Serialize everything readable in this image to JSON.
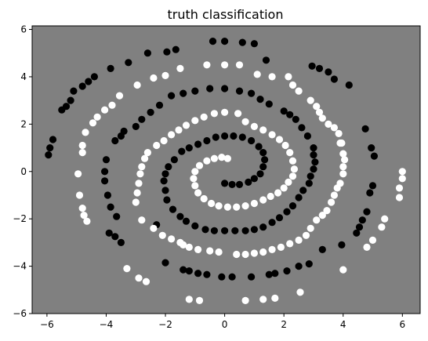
{
  "chart_data": {
    "type": "scatter",
    "title": "truth classification",
    "xlabel": "",
    "ylabel": "",
    "xlim": [
      -6.5,
      6.6
    ],
    "ylim": [
      -6.0,
      6.15
    ],
    "x_ticks": [
      -6,
      -4,
      -2,
      0,
      2,
      4,
      6
    ],
    "y_ticks": [
      -6,
      -4,
      -2,
      0,
      2,
      4,
      6
    ],
    "x_tick_labels": [
      "−6",
      "−4",
      "−2",
      "0",
      "2",
      "4",
      "6"
    ],
    "y_tick_labels": [
      "−6",
      "−4",
      "−2",
      "0",
      "2",
      "4",
      "6"
    ],
    "grid": false,
    "legend": "none",
    "colors": {
      "background": "#808080",
      "class_black": "#000000",
      "class_white": "#ffffff"
    },
    "series": [
      {
        "color": "#000000",
        "points": [
          [
            0.0,
            -0.5
          ],
          [
            0.25,
            -0.55
          ],
          [
            0.5,
            -0.55
          ],
          [
            0.8,
            -0.45
          ],
          [
            1.0,
            -0.3
          ],
          [
            1.2,
            -0.1
          ],
          [
            1.3,
            0.2
          ],
          [
            1.35,
            0.5
          ],
          [
            1.3,
            0.8
          ],
          [
            1.15,
            1.05
          ],
          [
            0.9,
            1.3
          ],
          [
            0.6,
            1.45
          ],
          [
            0.3,
            1.5
          ],
          [
            0.0,
            1.5
          ],
          [
            -0.3,
            1.45
          ],
          [
            -0.6,
            1.3
          ],
          [
            -0.9,
            1.15
          ],
          [
            -1.2,
            1.0
          ],
          [
            -1.45,
            0.85
          ],
          [
            -1.7,
            0.5
          ],
          [
            -1.9,
            0.2
          ],
          [
            -2.0,
            -0.1
          ],
          [
            -2.05,
            -0.4
          ],
          [
            -2.0,
            -0.8
          ],
          [
            -1.95,
            -1.2
          ],
          [
            -1.75,
            -1.6
          ],
          [
            -1.5,
            -1.9
          ],
          [
            -1.3,
            -2.1
          ],
          [
            -1.0,
            -2.3
          ],
          [
            -0.65,
            -2.45
          ],
          [
            -0.35,
            -2.5
          ],
          [
            0.0,
            -2.5
          ],
          [
            0.35,
            -2.5
          ],
          [
            0.7,
            -2.5
          ],
          [
            1.0,
            -2.45
          ],
          [
            1.3,
            -2.35
          ],
          [
            1.6,
            -2.15
          ],
          [
            1.85,
            -1.95
          ],
          [
            2.1,
            -1.7
          ],
          [
            2.3,
            -1.45
          ],
          [
            2.5,
            -1.1
          ],
          [
            2.65,
            -0.8
          ],
          [
            2.85,
            -0.5
          ],
          [
            2.9,
            -0.2
          ],
          [
            3.0,
            0.1
          ],
          [
            3.05,
            0.4
          ],
          [
            3.0,
            0.7
          ],
          [
            3.0,
            1.0
          ],
          [
            2.8,
            1.5
          ],
          [
            2.6,
            1.85
          ],
          [
            2.4,
            2.2
          ],
          [
            2.2,
            2.4
          ],
          [
            2.0,
            2.55
          ],
          [
            1.5,
            2.85
          ],
          [
            1.2,
            3.05
          ],
          [
            0.9,
            3.3
          ],
          [
            0.5,
            3.4
          ],
          [
            0.0,
            3.5
          ],
          [
            -0.5,
            3.5
          ],
          [
            -1.0,
            3.4
          ],
          [
            -1.4,
            3.3
          ],
          [
            -1.8,
            3.2
          ],
          [
            -2.2,
            2.8
          ],
          [
            -2.5,
            2.5
          ],
          [
            -2.8,
            2.2
          ],
          [
            -3.0,
            1.9
          ],
          [
            -3.4,
            1.7
          ],
          [
            -3.5,
            1.5
          ],
          [
            -3.7,
            1.3
          ],
          [
            -4.0,
            0.5
          ],
          [
            -4.05,
            0.0
          ],
          [
            -4.05,
            -0.4
          ],
          [
            -3.95,
            -1.0
          ],
          [
            -3.85,
            -1.5
          ],
          [
            -3.65,
            -1.9
          ],
          [
            -3.9,
            -2.6
          ],
          [
            -3.7,
            -2.75
          ],
          [
            -3.5,
            -3.0
          ],
          [
            -2.3,
            -2.25
          ],
          [
            -2.0,
            -3.85
          ],
          [
            -1.4,
            -4.15
          ],
          [
            -1.2,
            -4.2
          ],
          [
            -0.9,
            -4.3
          ],
          [
            -0.6,
            -4.35
          ],
          [
            -0.1,
            -4.45
          ],
          [
            0.25,
            -4.45
          ],
          [
            0.9,
            -4.45
          ],
          [
            1.5,
            -4.35
          ],
          [
            1.7,
            -4.3
          ],
          [
            2.1,
            -4.2
          ],
          [
            2.5,
            -4.0
          ],
          [
            2.85,
            -3.9
          ],
          [
            3.3,
            -3.3
          ],
          [
            3.95,
            -3.1
          ],
          [
            4.45,
            -2.6
          ],
          [
            4.55,
            -2.35
          ],
          [
            4.65,
            -2.05
          ],
          [
            4.8,
            -1.7
          ],
          [
            4.9,
            -0.9
          ],
          [
            5.0,
            -0.6
          ],
          [
            5.05,
            0.65
          ],
          [
            4.95,
            1.0
          ],
          [
            4.75,
            1.8
          ],
          [
            4.2,
            3.65
          ],
          [
            3.7,
            3.9
          ],
          [
            3.5,
            4.2
          ],
          [
            3.2,
            4.35
          ],
          [
            2.95,
            4.45
          ],
          [
            1.4,
            4.7
          ],
          [
            1.0,
            5.4
          ],
          [
            0.6,
            5.45
          ],
          [
            0.0,
            5.5
          ],
          [
            -0.4,
            5.5
          ],
          [
            -1.65,
            5.15
          ],
          [
            -1.95,
            5.05
          ],
          [
            -2.6,
            5.0
          ],
          [
            -3.25,
            4.6
          ],
          [
            -3.85,
            4.35
          ],
          [
            -4.4,
            4.0
          ],
          [
            -4.6,
            3.8
          ],
          [
            -4.8,
            3.6
          ],
          [
            -5.1,
            3.4
          ],
          [
            -5.2,
            3.0
          ],
          [
            -5.35,
            2.75
          ],
          [
            -5.5,
            2.6
          ],
          [
            -5.8,
            1.35
          ],
          [
            -5.9,
            1.0
          ],
          [
            -5.95,
            0.7
          ]
        ]
      },
      {
        "color": "#ffffff",
        "points": [
          [
            0.1,
            0.55
          ],
          [
            -0.1,
            0.6
          ],
          [
            -0.35,
            0.55
          ],
          [
            -0.6,
            0.45
          ],
          [
            -0.85,
            0.25
          ],
          [
            -1.0,
            0.0
          ],
          [
            -1.05,
            -0.3
          ],
          [
            -1.0,
            -0.6
          ],
          [
            -0.9,
            -0.9
          ],
          [
            -0.7,
            -1.15
          ],
          [
            -0.45,
            -1.35
          ],
          [
            -0.2,
            -1.45
          ],
          [
            0.1,
            -1.5
          ],
          [
            0.4,
            -1.5
          ],
          [
            0.7,
            -1.45
          ],
          [
            1.0,
            -1.35
          ],
          [
            1.3,
            -1.2
          ],
          [
            1.55,
            -1.05
          ],
          [
            1.8,
            -0.9
          ],
          [
            2.0,
            -0.7
          ],
          [
            2.15,
            -0.45
          ],
          [
            2.3,
            -0.2
          ],
          [
            2.35,
            0.1
          ],
          [
            2.3,
            0.45
          ],
          [
            2.2,
            0.8
          ],
          [
            2.05,
            1.1
          ],
          [
            1.85,
            1.35
          ],
          [
            1.6,
            1.55
          ],
          [
            1.3,
            1.75
          ],
          [
            1.0,
            1.9
          ],
          [
            0.7,
            2.1
          ],
          [
            0.45,
            2.45
          ],
          [
            0.0,
            2.5
          ],
          [
            -0.35,
            2.45
          ],
          [
            -0.7,
            2.3
          ],
          [
            -1.0,
            2.15
          ],
          [
            -1.3,
            1.95
          ],
          [
            -1.55,
            1.75
          ],
          [
            -1.8,
            1.55
          ],
          [
            -2.05,
            1.3
          ],
          [
            -2.3,
            1.1
          ],
          [
            -2.6,
            0.8
          ],
          [
            -2.7,
            0.55
          ],
          [
            -2.8,
            0.2
          ],
          [
            -2.85,
            -0.1
          ],
          [
            -2.9,
            -0.5
          ],
          [
            -2.95,
            -0.9
          ],
          [
            -3.0,
            -1.3
          ],
          [
            -2.8,
            -2.05
          ],
          [
            -2.4,
            -2.4
          ],
          [
            -2.1,
            -2.7
          ],
          [
            -1.8,
            -2.85
          ],
          [
            -1.5,
            -3.0
          ],
          [
            -1.4,
            -3.1
          ],
          [
            -1.2,
            -3.2
          ],
          [
            -0.9,
            -3.3
          ],
          [
            -0.5,
            -3.35
          ],
          [
            -0.2,
            -3.4
          ],
          [
            0.4,
            -3.5
          ],
          [
            0.7,
            -3.5
          ],
          [
            1.0,
            -3.45
          ],
          [
            1.3,
            -3.4
          ],
          [
            1.6,
            -3.3
          ],
          [
            1.9,
            -3.2
          ],
          [
            2.2,
            -3.05
          ],
          [
            2.5,
            -2.9
          ],
          [
            2.75,
            -2.7
          ],
          [
            2.9,
            -2.4
          ],
          [
            3.1,
            -2.05
          ],
          [
            3.3,
            -1.85
          ],
          [
            3.45,
            -1.65
          ],
          [
            3.6,
            -1.3
          ],
          [
            3.7,
            -1.0
          ],
          [
            3.8,
            -0.7
          ],
          [
            3.9,
            -0.5
          ],
          [
            4.0,
            -0.1
          ],
          [
            4.0,
            0.2
          ],
          [
            4.05,
            0.5
          ],
          [
            4.0,
            0.75
          ],
          [
            3.95,
            1.2
          ],
          [
            3.9,
            1.2
          ],
          [
            3.85,
            1.6
          ],
          [
            3.7,
            1.85
          ],
          [
            3.5,
            2.0
          ],
          [
            3.3,
            2.25
          ],
          [
            3.2,
            2.5
          ],
          [
            3.1,
            2.75
          ],
          [
            2.9,
            3.0
          ],
          [
            2.5,
            3.4
          ],
          [
            2.3,
            3.65
          ],
          [
            2.15,
            4.0
          ],
          [
            1.6,
            4.0
          ],
          [
            1.1,
            4.1
          ],
          [
            0.5,
            4.5
          ],
          [
            0.0,
            4.5
          ],
          [
            -0.6,
            4.5
          ],
          [
            -1.5,
            4.35
          ],
          [
            -2.0,
            4.05
          ],
          [
            -2.4,
            3.95
          ],
          [
            -2.95,
            3.65
          ],
          [
            -3.55,
            3.2
          ],
          [
            -3.8,
            2.8
          ],
          [
            -4.05,
            2.6
          ],
          [
            -4.3,
            2.3
          ],
          [
            -4.45,
            2.05
          ],
          [
            -4.7,
            1.65
          ],
          [
            -4.8,
            1.1
          ],
          [
            -4.8,
            0.8
          ],
          [
            -4.95,
            -0.1
          ],
          [
            -4.9,
            -1.0
          ],
          [
            -4.8,
            -1.55
          ],
          [
            -4.75,
            -1.85
          ],
          [
            -4.65,
            -2.1
          ],
          [
            -3.3,
            -4.1
          ],
          [
            -2.9,
            -4.5
          ],
          [
            -2.65,
            -4.65
          ],
          [
            -1.2,
            -5.4
          ],
          [
            -0.85,
            -5.45
          ],
          [
            0.7,
            -5.45
          ],
          [
            1.3,
            -5.4
          ],
          [
            1.7,
            -5.35
          ],
          [
            2.55,
            -5.1
          ],
          [
            4.0,
            -4.15
          ],
          [
            4.8,
            -3.2
          ],
          [
            5.0,
            -2.9
          ],
          [
            5.3,
            -2.35
          ],
          [
            5.4,
            -2.0
          ],
          [
            5.9,
            -1.1
          ],
          [
            5.9,
            -0.7
          ],
          [
            6.0,
            -0.3
          ],
          [
            6.0,
            0.0
          ]
        ]
      }
    ]
  }
}
